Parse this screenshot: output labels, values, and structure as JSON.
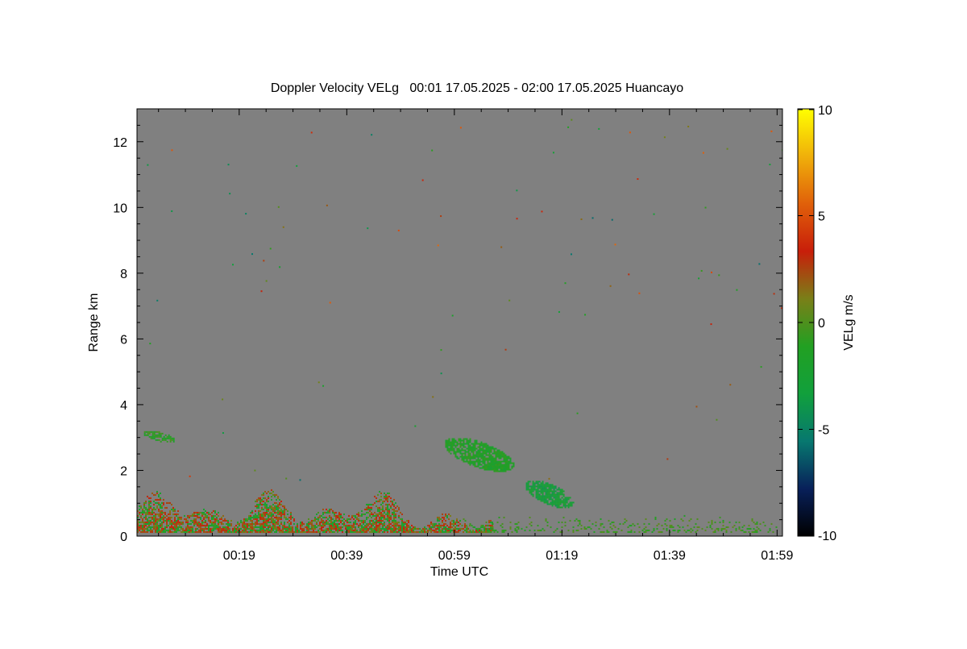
{
  "chart_data": {
    "type": "heatmap",
    "title": "Doppler Velocity VELg   00:01 17.05.2025 - 02:00 17.05.2025 Huancayo",
    "xlabel": "Time UTC",
    "ylabel": "Range km",
    "x_tick_labels": [
      "00:19",
      "00:39",
      "00:59",
      "01:19",
      "01:39",
      "01:59"
    ],
    "x_tick_minutes": [
      19,
      39,
      59,
      79,
      99,
      119
    ],
    "xlim_minutes": [
      0,
      120
    ],
    "y_ticks": [
      0,
      2,
      4,
      6,
      8,
      10,
      12
    ],
    "ylim": [
      0,
      13
    ],
    "colorbar": {
      "label": "VELg m/s",
      "range": [
        -10,
        10
      ],
      "ticks": [
        -10,
        -5,
        0,
        5,
        10
      ],
      "colors": [
        "#000000",
        "#08205a",
        "#07786f",
        "#11a03c",
        "#22a022",
        "#7a7f18",
        "#c81e0a",
        "#e0600a",
        "#f0b00a",
        "#ffff00"
      ]
    },
    "background_color": "#808080",
    "regions": [
      {
        "name": "boundary-layer-echo",
        "t_start": 0,
        "t_end": 66,
        "range_low": 0.1,
        "range_high": 1.4,
        "mean_velocity": 1.5
      },
      {
        "name": "near-surface-scatter",
        "t_start": 60,
        "t_end": 119,
        "range_low": 0.1,
        "range_high": 0.6,
        "mean_velocity": -0.5
      },
      {
        "name": "cloud-layer-1",
        "t_start": 57,
        "t_end": 70,
        "range_low": 1.9,
        "range_high": 3.0,
        "mean_velocity": -1.5
      },
      {
        "name": "cloud-layer-2",
        "t_start": 72,
        "t_end": 81,
        "range_low": 0.8,
        "range_high": 1.7,
        "mean_velocity": -3.0
      },
      {
        "name": "elevated-echo",
        "t_start": 1,
        "t_end": 7,
        "range_low": 2.8,
        "range_high": 3.2,
        "mean_velocity": -1.0
      }
    ]
  }
}
